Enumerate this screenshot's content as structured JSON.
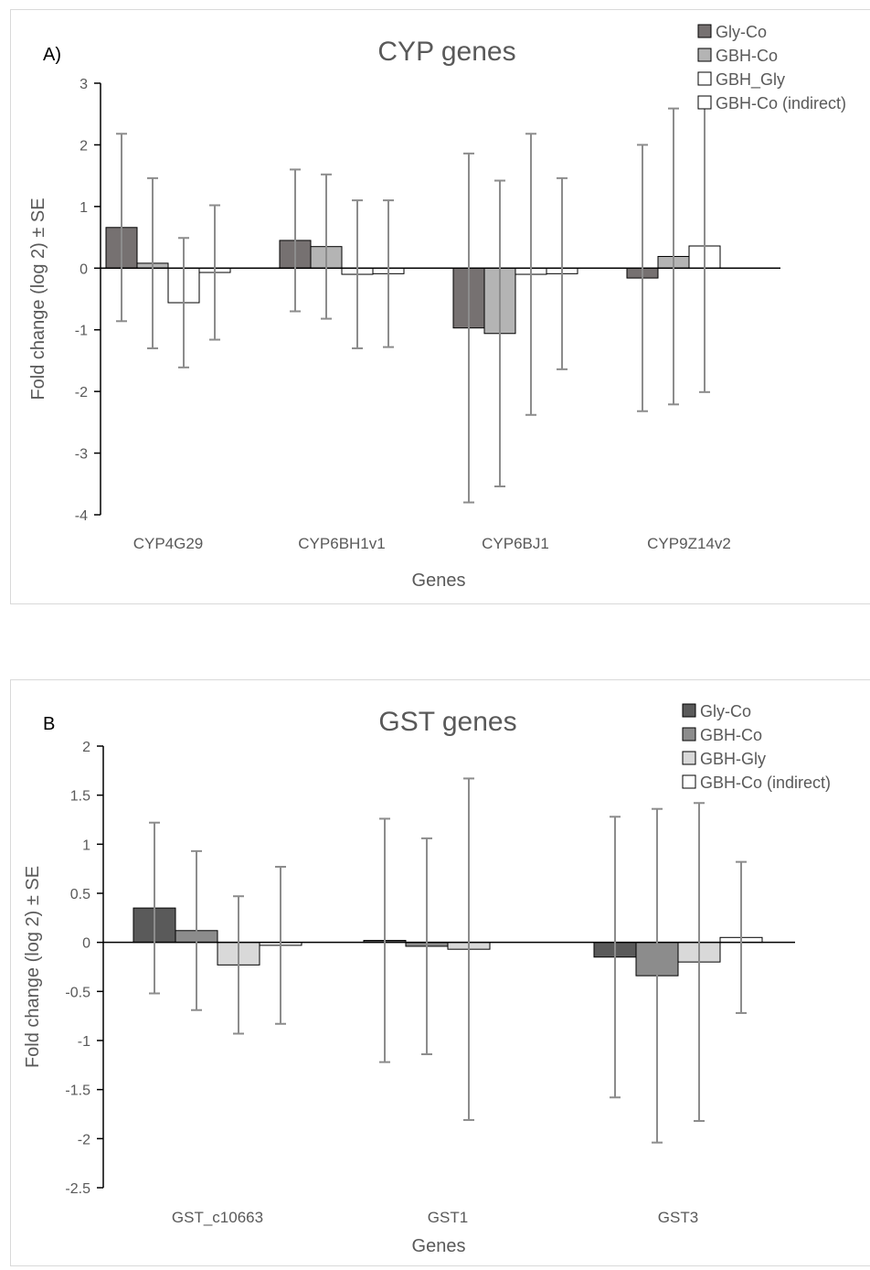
{
  "chart_data": [
    {
      "type": "bar",
      "panel_label": "A)",
      "title": "CYP genes",
      "xlabel": "Genes",
      "ylabel": "Fold change (log 2) ± SE",
      "ylim": [
        -4,
        3
      ],
      "yticks": [
        3,
        2,
        1,
        0,
        -1,
        -2,
        -3,
        -4
      ],
      "ytick_labels": [
        "3",
        "2",
        "1",
        "0",
        "-1",
        "-2",
        "-3",
        "-4"
      ],
      "categories": [
        "CYP4G29",
        "CYP6BH1v1",
        "CYP6BJ1",
        "CYP9Z14v2"
      ],
      "legend_position": "top-right",
      "series": [
        {
          "name": "Gly-Co",
          "color": "#767171",
          "values": [
            0.66,
            0.45,
            -0.97,
            -0.16
          ],
          "error": [
            1.52,
            1.15,
            2.83,
            2.16
          ]
        },
        {
          "name": "GBH-Co",
          "color": "#b4b4b4",
          "values": [
            0.08,
            0.35,
            -1.06,
            0.19
          ],
          "error": [
            1.38,
            1.17,
            2.48,
            2.4
          ]
        },
        {
          "name": "GBH_Gly",
          "color": "#ffffff",
          "values": [
            -0.56,
            -0.1,
            -0.1,
            0.36
          ],
          "error": [
            1.05,
            1.2,
            2.28,
            2.37
          ]
        },
        {
          "name": "GBH-Co (indirect)",
          "color": "#ffffff",
          "values": [
            -0.07,
            -0.09,
            -0.09,
            null
          ],
          "error": [
            1.09,
            1.19,
            1.55,
            null
          ]
        }
      ]
    },
    {
      "type": "bar",
      "panel_label": "B",
      "title": "GST genes",
      "xlabel": "Genes",
      "ylabel": "Fold change (log 2) ± SE",
      "ylim": [
        -2.5,
        2
      ],
      "yticks": [
        2,
        1.5,
        1,
        0.5,
        0,
        -0.5,
        -1,
        -1.5,
        -2,
        -2.5
      ],
      "ytick_labels": [
        "2",
        "1.5",
        "1",
        "0.5",
        "0",
        "-0.5",
        "-1",
        "-1.5",
        "-2",
        "-2.5"
      ],
      "categories": [
        "GST_c10663",
        "GST1",
        "GST3"
      ],
      "legend_position": "top-right",
      "series": [
        {
          "name": "Gly-Co",
          "color": "#5a5a5a",
          "values": [
            0.35,
            0.02,
            -0.15
          ],
          "error": [
            0.87,
            1.24,
            1.43
          ]
        },
        {
          "name": "GBH-Co",
          "color": "#8c8c8c",
          "values": [
            0.12,
            -0.04,
            -0.34
          ],
          "error": [
            0.81,
            1.1,
            1.7
          ]
        },
        {
          "name": "GBH-Gly",
          "color": "#d9d9d9",
          "values": [
            -0.23,
            -0.07,
            -0.2
          ],
          "error": [
            0.7,
            1.74,
            1.62
          ]
        },
        {
          "name": "GBH-Co (indirect)",
          "color": "#ffffff",
          "values": [
            -0.03,
            null,
            0.05
          ],
          "error": [
            0.8,
            null,
            0.77
          ]
        }
      ]
    }
  ]
}
